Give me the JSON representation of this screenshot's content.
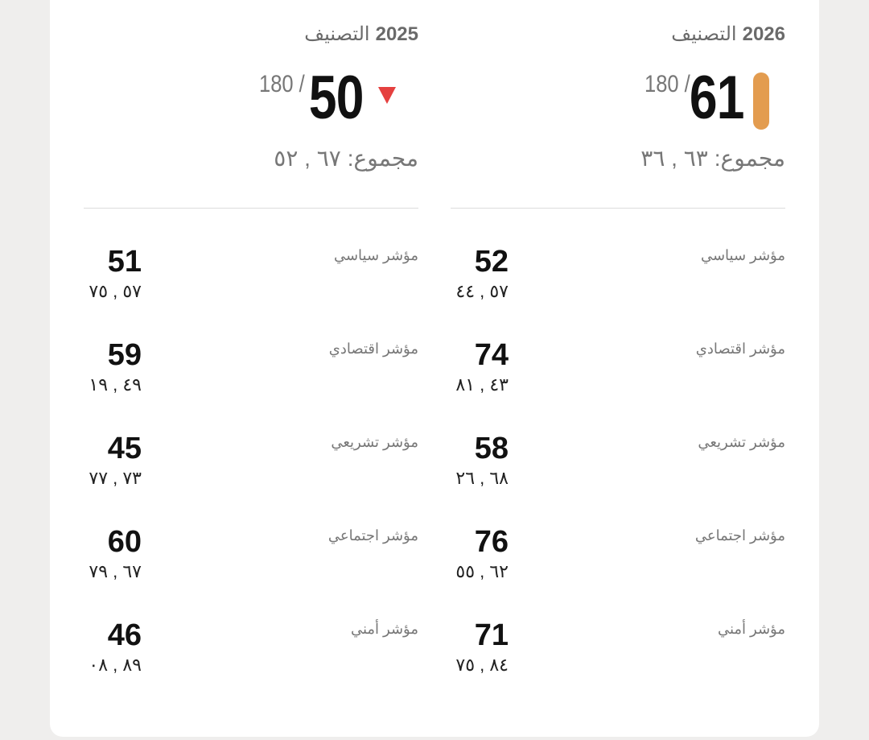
{
  "colors": {
    "accent_bar": "#e39c4f",
    "down_arrow": "#e5403f"
  },
  "columns": [
    {
      "year": "2026",
      "title": "التصنيف",
      "rank": "61",
      "out_of": "180",
      "rank_indicator": "orange-bar",
      "total_label": "مجموع:",
      "total_value": "٦٣ , ٣٦",
      "rows": [
        {
          "label": "مؤشر سياسي",
          "score": "52",
          "value": "٥٧ , ٤٤"
        },
        {
          "label": "مؤشر اقتصادي",
          "score": "74",
          "value": "٤٣ , ٨١"
        },
        {
          "label": "مؤشر تشريعي",
          "score": "58",
          "value": "٦٨ , ٢٦"
        },
        {
          "label": "مؤشر اجتماعي",
          "score": "76",
          "value": "٦٢ , ٥٥"
        },
        {
          "label": "مؤشر أمني",
          "score": "71",
          "value": "٨٤ , ٧٥"
        }
      ]
    },
    {
      "year": "2025",
      "title": "التصنيف",
      "rank": "50",
      "out_of": "180",
      "rank_indicator": "down-triangle",
      "total_label": "مجموع:",
      "total_value": "٦٧ , ٥٢",
      "rows": [
        {
          "label": "مؤشر سياسي",
          "score": "51",
          "value": "٥٧ , ٧٥"
        },
        {
          "label": "مؤشر اقتصادي",
          "score": "59",
          "value": "٤٩ , ١٩"
        },
        {
          "label": "مؤشر تشريعي",
          "score": "45",
          "value": "٧٣ , ٧٧"
        },
        {
          "label": "مؤشر اجتماعي",
          "score": "60",
          "value": "٦٧ , ٧٩"
        },
        {
          "label": "مؤشر أمني",
          "score": "46",
          "value": "٨٩ , ٠٨"
        }
      ]
    }
  ]
}
